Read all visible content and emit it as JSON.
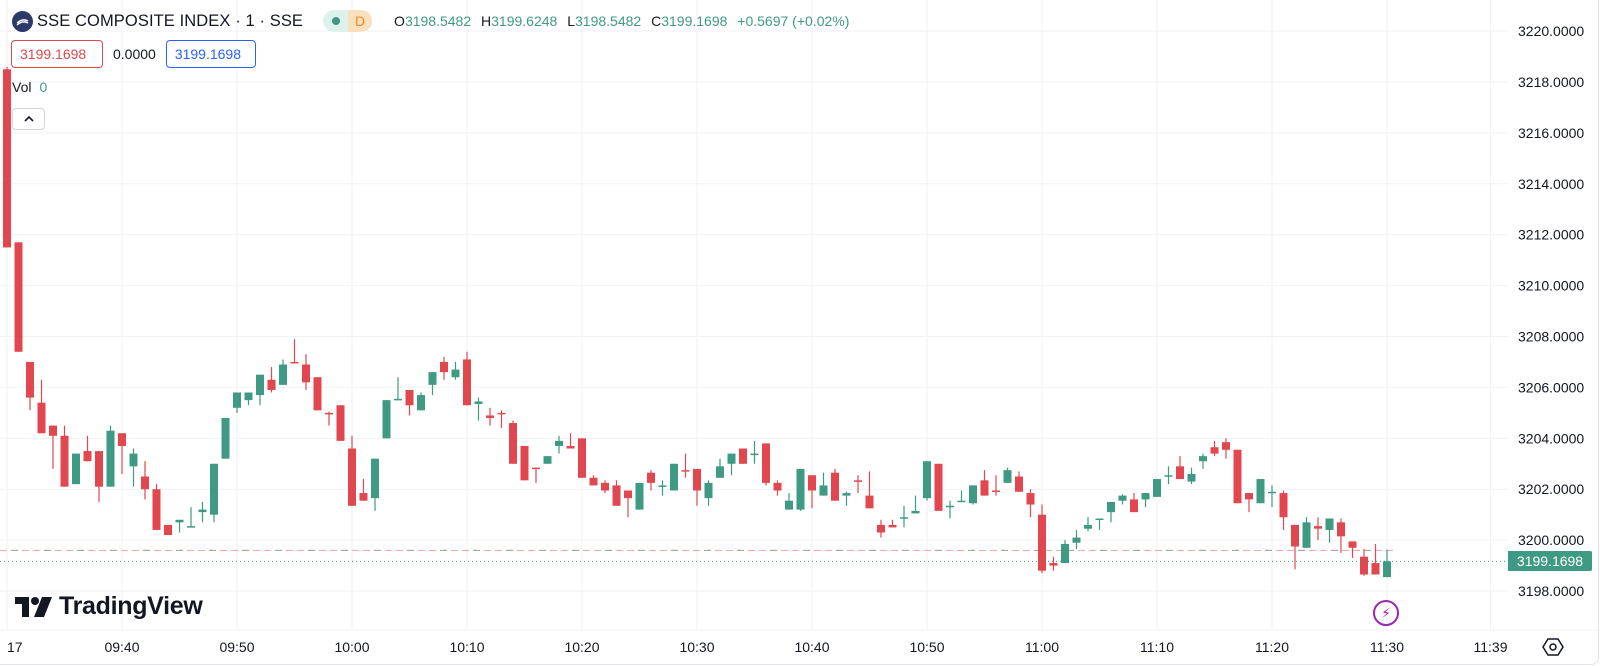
{
  "legend": {
    "title": "SSE COMPOSITE INDEX · 1 · SSE",
    "status_letter": "D",
    "ohlc": [
      {
        "key": "O",
        "value": "3198.5482"
      },
      {
        "key": "H",
        "value": "3199.6248"
      },
      {
        "key": "L",
        "value": "3198.5482"
      },
      {
        "key": "C",
        "value": "3199.1698"
      }
    ],
    "change": "+0.5697 (+0.02%)",
    "bid": "3199.1698",
    "spread": "0.0000",
    "ask": "3199.1698",
    "vol_label": "Vol",
    "vol_value": "0",
    "collapse_icon": "chevron-up-icon"
  },
  "brand": "TradingView",
  "last_price_label": "3199.1698",
  "colors": {
    "up": "#3f9a83",
    "down": "#e0474f",
    "ask": "#2962ff",
    "replay": "#9c27b0"
  },
  "chart_data": {
    "type": "candlestick",
    "title": "SSE COMPOSITE INDEX · 1 · SSE",
    "ylim": [
      3196.47,
      3221.22
    ],
    "grid": true,
    "y_ticks": [
      "3198.0000",
      "3200.0000",
      "3202.0000",
      "3204.0000",
      "3206.0000",
      "3208.0000",
      "3210.0000",
      "3212.0000",
      "3214.0000",
      "3216.0000",
      "3218.0000",
      "3220.0000"
    ],
    "x_ticks": [
      {
        "label": "17",
        "time": "09:30"
      },
      {
        "label": "09:40",
        "time": "09:40"
      },
      {
        "label": "09:50",
        "time": "09:50"
      },
      {
        "label": "10:00",
        "time": "10:00"
      },
      {
        "label": "10:10",
        "time": "10:10"
      },
      {
        "label": "10:20",
        "time": "10:20"
      },
      {
        "label": "10:30",
        "time": "10:30"
      },
      {
        "label": "10:40",
        "time": "10:40"
      },
      {
        "label": "10:50",
        "time": "10:50"
      },
      {
        "label": "11:00",
        "time": "11:00"
      },
      {
        "label": "11:10",
        "time": "11:10"
      },
      {
        "label": "11:20",
        "time": "11:20"
      },
      {
        "label": "11:30",
        "time": "11:30"
      },
      {
        "label": "11:39",
        "time": "11:39"
      }
    ],
    "last_price": 3199.1698,
    "dashed_level": 3199.6,
    "columns": [
      "time",
      "open",
      "high",
      "low",
      "close"
    ],
    "candles": [
      [
        "09:30",
        3218.5,
        3218.6,
        3211.5,
        3211.5
      ],
      [
        "09:31",
        3211.7,
        3211.7,
        3207.4,
        3207.4
      ],
      [
        "09:32",
        3207.0,
        3207.0,
        3205.1,
        3205.6
      ],
      [
        "09:33",
        3205.4,
        3206.3,
        3204.2,
        3204.2
      ],
      [
        "09:34",
        3204.5,
        3204.5,
        3202.8,
        3204.1
      ],
      [
        "09:35",
        3204.1,
        3204.5,
        3202.1,
        3202.1
      ],
      [
        "09:36",
        3202.2,
        3203.4,
        3202.2,
        3203.4
      ],
      [
        "09:37",
        3203.5,
        3204.1,
        3203.1,
        3203.1
      ],
      [
        "09:38",
        3203.5,
        3203.5,
        3201.5,
        3202.1
      ],
      [
        "09:39",
        3202.1,
        3204.5,
        3202.1,
        3204.3
      ],
      [
        "09:40",
        3204.2,
        3204.2,
        3202.6,
        3203.7
      ],
      [
        "09:41",
        3202.9,
        3203.6,
        3202.1,
        3203.4
      ],
      [
        "09:42",
        3202.5,
        3203.1,
        3201.6,
        3202.0
      ],
      [
        "09:43",
        3202.0,
        3202.2,
        3200.4,
        3200.4
      ],
      [
        "09:44",
        3200.6,
        3200.6,
        3200.2,
        3200.2
      ],
      [
        "09:45",
        3200.7,
        3200.8,
        3200.3,
        3200.8
      ],
      [
        "09:46",
        3200.5,
        3201.3,
        3200.5,
        3200.55
      ],
      [
        "09:47",
        3201.1,
        3201.5,
        3200.7,
        3201.2
      ],
      [
        "09:48",
        3201.0,
        3203.0,
        3200.7,
        3203.0
      ],
      [
        "09:49",
        3203.2,
        3204.8,
        3203.2,
        3204.8
      ],
      [
        "09:50",
        3205.2,
        3205.8,
        3205.0,
        3205.8
      ],
      [
        "09:51",
        3205.5,
        3205.8,
        3205.3,
        3205.8
      ],
      [
        "09:52",
        3205.7,
        3206.5,
        3205.3,
        3206.5
      ],
      [
        "09:53",
        3206.3,
        3206.8,
        3205.8,
        3205.9
      ],
      [
        "09:54",
        3206.1,
        3207.1,
        3206.1,
        3206.9
      ],
      [
        "09:55",
        3207.0,
        3207.9,
        3206.95,
        3206.95
      ],
      [
        "09:56",
        3206.9,
        3207.3,
        3205.9,
        3206.2
      ],
      [
        "09:57",
        3206.4,
        3206.4,
        3205.1,
        3205.1
      ],
      [
        "09:58",
        3205.0,
        3205.05,
        3204.5,
        3204.95
      ],
      [
        "09:59",
        3205.3,
        3205.3,
        3203.9,
        3203.9
      ],
      [
        "10:00",
        3203.6,
        3204.1,
        3201.35,
        3201.35
      ],
      [
        "10:01",
        3201.85,
        3202.4,
        3201.55,
        3201.55
      ],
      [
        "10:02",
        3201.65,
        3203.2,
        3201.15,
        3203.2
      ],
      [
        "10:03",
        3204.0,
        3205.5,
        3204.0,
        3205.5
      ],
      [
        "10:04",
        3205.5,
        3206.4,
        3205.5,
        3205.55
      ],
      [
        "10:05",
        3205.9,
        3205.9,
        3204.9,
        3205.3
      ],
      [
        "10:06",
        3205.1,
        3205.8,
        3205.1,
        3205.7
      ],
      [
        "10:07",
        3206.1,
        3206.6,
        3205.7,
        3206.6
      ],
      [
        "10:08",
        3207.0,
        3207.2,
        3206.3,
        3206.6
      ],
      [
        "10:09",
        3206.4,
        3207.0,
        3206.3,
        3206.7
      ],
      [
        "10:10",
        3207.1,
        3207.4,
        3205.3,
        3205.3
      ],
      [
        "10:11",
        3205.35,
        3205.6,
        3204.7,
        3205.45
      ],
      [
        "10:12",
        3204.9,
        3205.2,
        3204.5,
        3204.8
      ],
      [
        "10:13",
        3205.0,
        3205.1,
        3204.4,
        3204.95
      ],
      [
        "10:14",
        3204.6,
        3204.7,
        3203.0,
        3203.0
      ],
      [
        "10:15",
        3203.7,
        3203.7,
        3202.35,
        3202.35
      ],
      [
        "10:16",
        3202.85,
        3202.85,
        3202.25,
        3202.8
      ],
      [
        "10:17",
        3203.0,
        3203.3,
        3203.0,
        3203.3
      ],
      [
        "10:18",
        3203.7,
        3204.1,
        3203.4,
        3203.9
      ],
      [
        "10:19",
        3203.7,
        3204.2,
        3203.6,
        3203.6
      ],
      [
        "10:20",
        3204.0,
        3204.0,
        3202.45,
        3202.45
      ],
      [
        "10:21",
        3202.45,
        3202.55,
        3202.15,
        3202.15
      ],
      [
        "10:22",
        3202.25,
        3202.35,
        3201.85,
        3201.95
      ],
      [
        "10:23",
        3202.15,
        3202.35,
        3201.35,
        3201.35
      ],
      [
        "10:24",
        3201.95,
        3201.95,
        3200.9,
        3201.65
      ],
      [
        "10:25",
        3201.2,
        3202.25,
        3201.2,
        3202.25
      ],
      [
        "10:26",
        3202.65,
        3202.75,
        3201.95,
        3202.25
      ],
      [
        "10:27",
        3202.1,
        3202.35,
        3201.75,
        3202.15
      ],
      [
        "10:28",
        3201.95,
        3203.0,
        3201.95,
        3203.0
      ],
      [
        "10:29",
        3202.75,
        3203.4,
        3202.45,
        3202.7
      ],
      [
        "10:30",
        3202.8,
        3202.8,
        3201.35,
        3201.95
      ],
      [
        "10:31",
        3201.65,
        3202.35,
        3201.35,
        3202.25
      ],
      [
        "10:32",
        3202.45,
        3203.2,
        3202.45,
        3202.9
      ],
      [
        "10:33",
        3203.0,
        3203.4,
        3202.55,
        3203.4
      ],
      [
        "10:34",
        3203.6,
        3203.6,
        3203.0,
        3203.0
      ],
      [
        "10:35",
        3203.35,
        3203.9,
        3203.0,
        3203.4
      ],
      [
        "10:36",
        3203.8,
        3203.8,
        3202.15,
        3202.25
      ],
      [
        "10:37",
        3202.25,
        3202.35,
        3201.75,
        3201.95
      ],
      [
        "10:38",
        3201.2,
        3201.85,
        3201.2,
        3201.55
      ],
      [
        "10:39",
        3201.2,
        3202.8,
        3201.15,
        3202.8
      ],
      [
        "10:40",
        3202.55,
        3202.55,
        3201.25,
        3201.95
      ],
      [
        "10:41",
        3201.75,
        3202.65,
        3201.75,
        3202.15
      ],
      [
        "10:42",
        3202.65,
        3202.8,
        3201.55,
        3201.55
      ],
      [
        "10:43",
        3201.75,
        3201.9,
        3201.35,
        3201.85
      ],
      [
        "10:44",
        3202.35,
        3202.55,
        3201.85,
        3202.3
      ],
      [
        "10:45",
        3201.75,
        3202.7,
        3201.25,
        3201.25
      ],
      [
        "10:46",
        3200.6,
        3200.8,
        3200.1,
        3200.3
      ],
      [
        "10:47",
        3200.6,
        3200.8,
        3200.5,
        3200.5
      ],
      [
        "10:48",
        3200.85,
        3201.35,
        3200.5,
        3200.9
      ],
      [
        "10:49",
        3201.05,
        3201.75,
        3201.05,
        3201.15
      ],
      [
        "10:50",
        3201.65,
        3203.1,
        3201.55,
        3203.1
      ],
      [
        "10:51",
        3203.0,
        3203.0,
        3201.15,
        3201.15
      ],
      [
        "10:52",
        3201.3,
        3201.55,
        3200.85,
        3201.35
      ],
      [
        "10:53",
        3201.5,
        3201.95,
        3201.5,
        3201.55
      ],
      [
        "10:54",
        3201.45,
        3202.15,
        3201.4,
        3202.15
      ],
      [
        "10:55",
        3202.35,
        3202.75,
        3201.75,
        3201.75
      ],
      [
        "10:56",
        3201.95,
        3202.55,
        3201.75,
        3201.9
      ],
      [
        "10:57",
        3202.25,
        3202.85,
        3202.25,
        3202.75
      ],
      [
        "10:58",
        3202.5,
        3202.7,
        3201.9,
        3201.9
      ],
      [
        "10:59",
        3201.85,
        3202.0,
        3200.9,
        3201.4
      ],
      [
        "11:00",
        3201.0,
        3201.4,
        3198.7,
        3198.8
      ],
      [
        "11:01",
        3199.1,
        3199.35,
        3198.8,
        3199.0
      ],
      [
        "11:02",
        3199.1,
        3200.0,
        3199.1,
        3199.85
      ],
      [
        "11:03",
        3199.9,
        3200.4,
        3199.65,
        3200.1
      ],
      [
        "11:04",
        3200.45,
        3200.9,
        3200.35,
        3200.6
      ],
      [
        "11:05",
        3200.8,
        3200.85,
        3200.4,
        3200.85
      ],
      [
        "11:06",
        3201.1,
        3201.5,
        3200.7,
        3201.5
      ],
      [
        "11:07",
        3201.55,
        3201.8,
        3201.4,
        3201.75
      ],
      [
        "11:08",
        3201.6,
        3201.85,
        3201.1,
        3201.1
      ],
      [
        "11:09",
        3201.6,
        3201.85,
        3201.3,
        3201.85
      ],
      [
        "11:10",
        3201.7,
        3202.4,
        3201.7,
        3202.4
      ],
      [
        "11:11",
        3202.5,
        3202.9,
        3202.2,
        3202.55
      ],
      [
        "11:12",
        3202.9,
        3203.3,
        3202.4,
        3202.4
      ],
      [
        "11:13",
        3202.3,
        3202.85,
        3202.2,
        3202.6
      ],
      [
        "11:14",
        3203.1,
        3203.4,
        3202.8,
        3203.3
      ],
      [
        "11:15",
        3203.65,
        3203.9,
        3203.3,
        3203.4
      ],
      [
        "11:16",
        3203.85,
        3204.0,
        3203.2,
        3203.55
      ],
      [
        "11:17",
        3203.55,
        3203.55,
        3201.45,
        3201.45
      ],
      [
        "11:18",
        3201.85,
        3201.85,
        3201.1,
        3201.6
      ],
      [
        "11:19",
        3201.45,
        3202.4,
        3201.45,
        3202.4
      ],
      [
        "11:20",
        3201.85,
        3202.15,
        3201.3,
        3201.9
      ],
      [
        "11:21",
        3201.85,
        3201.95,
        3200.4,
        3200.9
      ],
      [
        "11:22",
        3200.6,
        3200.6,
        3198.85,
        3199.75
      ],
      [
        "11:23",
        3199.7,
        3200.9,
        3199.7,
        3200.7
      ],
      [
        "11:24",
        3200.55,
        3200.9,
        3200.0,
        3200.45
      ],
      [
        "11:25",
        3200.4,
        3200.85,
        3199.9,
        3200.85
      ],
      [
        "11:26",
        3200.7,
        3200.85,
        3199.5,
        3200.15
      ],
      [
        "11:27",
        3199.95,
        3199.95,
        3199.3,
        3199.7
      ],
      [
        "11:28",
        3199.35,
        3199.65,
        3198.6,
        3198.65
      ],
      [
        "11:29",
        3199.1,
        3199.85,
        3198.65,
        3198.65
      ],
      [
        "11:30",
        3198.5482,
        3199.6248,
        3198.5482,
        3199.1698
      ]
    ]
  }
}
